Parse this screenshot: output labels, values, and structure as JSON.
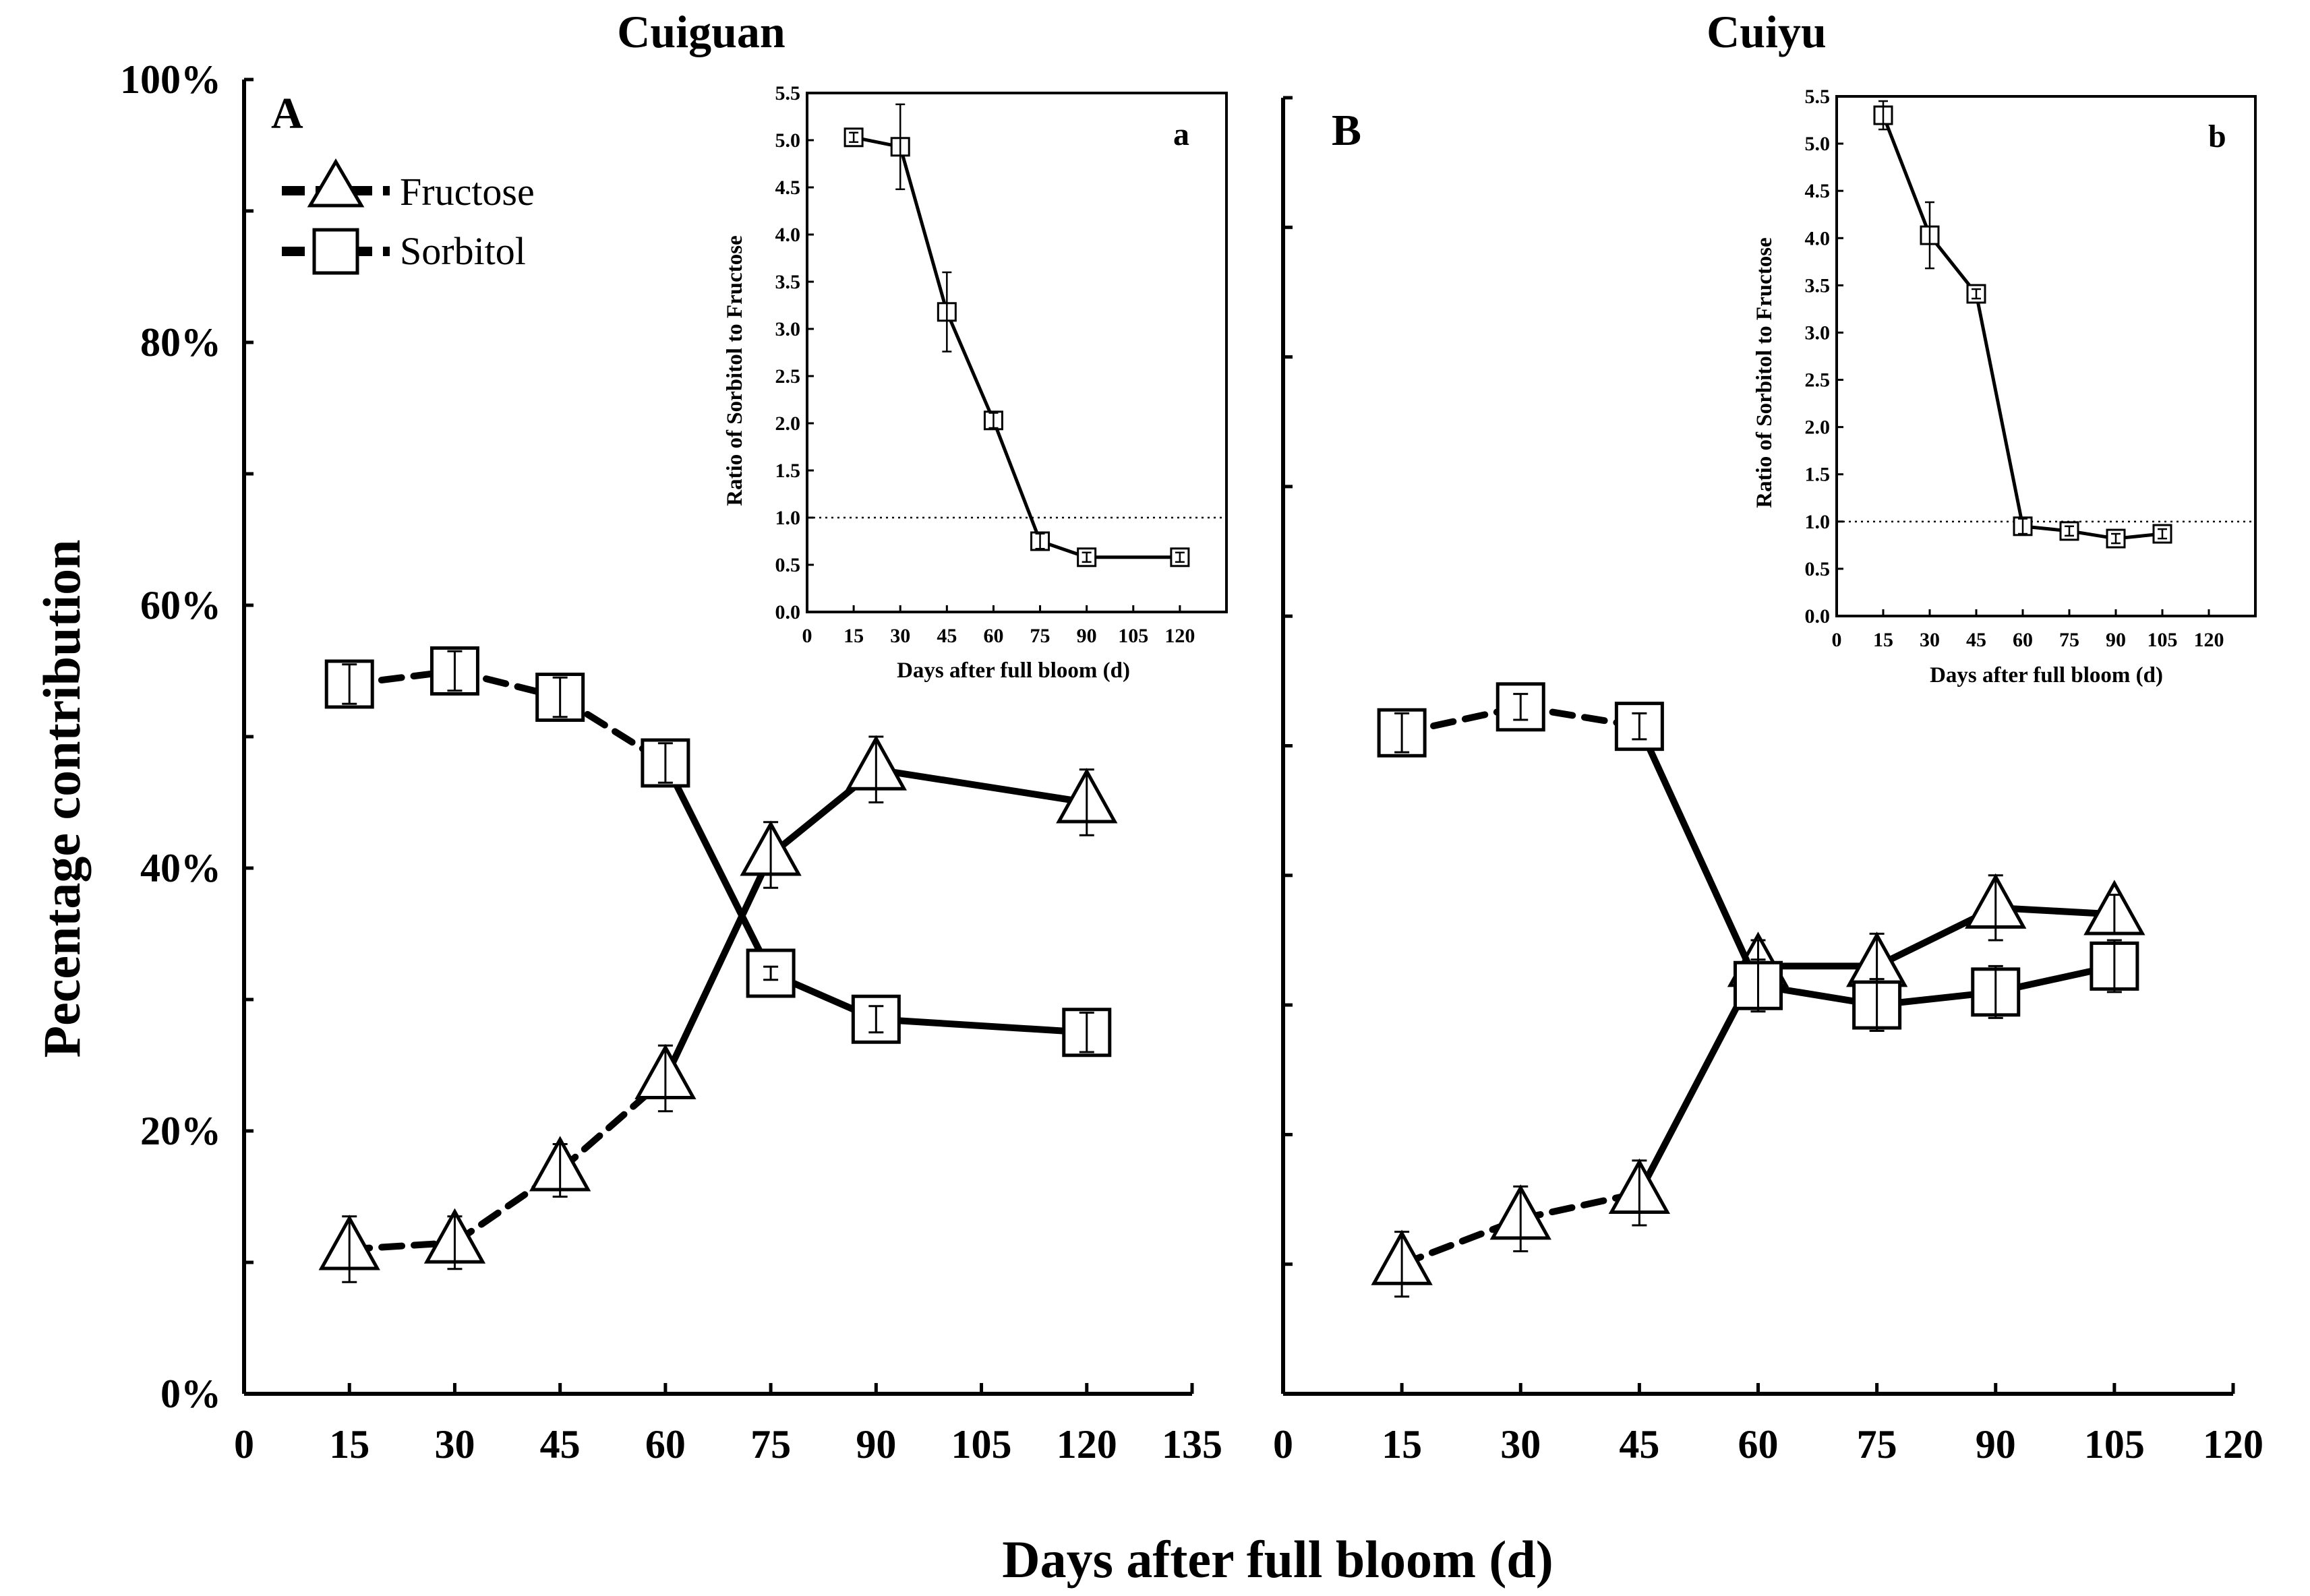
{
  "figure": {
    "x_axis_title": "Days after full bloom (d)",
    "y_axis_title": "Pecentage  contribution",
    "legend": [
      {
        "label": "Fructose",
        "marker": "triangle",
        "line": "dashed"
      },
      {
        "label": "Sorbitol",
        "marker": "square",
        "line": "dashed"
      }
    ]
  },
  "chart_data": [
    {
      "id": "A",
      "type": "line",
      "title": "Cuiguan",
      "panel_label": "A",
      "xlabel": "Days after full bloom (d)",
      "ylabel": "Pecentage  contribution",
      "xlim": [
        0,
        135
      ],
      "ylim": [
        0,
        100
      ],
      "xticks": [
        "0",
        "15",
        "30",
        "45",
        "60",
        "75",
        "90",
        "105",
        "120",
        "135"
      ],
      "yticks": [
        "0%",
        "20%",
        "40%",
        "60%",
        "80%",
        "100%"
      ],
      "x": [
        15,
        30,
        45,
        60,
        75,
        90,
        120
      ],
      "series": [
        {
          "name": "Fructose",
          "marker": "triangle",
          "values": [
            11,
            11.5,
            17,
            24,
            41,
            47.5,
            45
          ],
          "errors": [
            2.5,
            2,
            2,
            2.5,
            2.5,
            2.5,
            2.5
          ]
        },
        {
          "name": "Sorbitol",
          "marker": "square",
          "values": [
            54,
            55,
            53,
            48,
            32,
            28.5,
            27.5
          ],
          "errors": [
            1.5,
            1.5,
            1.5,
            1.5,
            0.5,
            1,
            1.5
          ]
        }
      ]
    },
    {
      "id": "B",
      "type": "line",
      "title": "Cuiyu",
      "panel_label": "B",
      "xlabel": "Days after full bloom (d)",
      "xlim": [
        0,
        120
      ],
      "ylim": [
        0,
        100
      ],
      "xticks": [
        "0",
        "15",
        "30",
        "45",
        "60",
        "75",
        "90",
        "105",
        "120"
      ],
      "x": [
        15,
        30,
        45,
        60,
        75,
        90,
        105
      ],
      "series": [
        {
          "name": "Fructose",
          "marker": "triangle",
          "values": [
            10,
            13.5,
            15.5,
            33,
            33,
            37.5,
            37
          ],
          "errors": [
            2.5,
            2.5,
            2.5,
            2,
            2.5,
            2.5,
            1.5
          ]
        },
        {
          "name": "Sorbitol",
          "marker": "square",
          "values": [
            51,
            53,
            51.5,
            31.5,
            30,
            31,
            33
          ],
          "errors": [
            1.5,
            1,
            1,
            2,
            2,
            2,
            2
          ]
        }
      ]
    },
    {
      "id": "a",
      "type": "line",
      "panel_label": "a",
      "inset_of": "A",
      "xlabel": "Days after full bloom (d)",
      "ylabel": "Ratio of Sorbitol to Fructose",
      "xlim": [
        0,
        135
      ],
      "ylim": [
        0,
        5.5
      ],
      "xticks": [
        "0",
        "15",
        "30",
        "45",
        "60",
        "75",
        "90",
        "105",
        "120"
      ],
      "yticks": [
        "0.0",
        "0.5",
        "1.0",
        "1.5",
        "2.0",
        "2.5",
        "3.0",
        "3.5",
        "4.0",
        "4.5",
        "5.0",
        "5.5"
      ],
      "reference_line": 1.0,
      "x": [
        15,
        30,
        45,
        60,
        75,
        90,
        120
      ],
      "series": [
        {
          "name": "Ratio",
          "marker": "square",
          "values": [
            5.03,
            4.93,
            3.18,
            2.03,
            0.75,
            0.58,
            0.58
          ],
          "errors": [
            0.05,
            0.45,
            0.42,
            0.08,
            0.08,
            0.05,
            0.05
          ]
        }
      ]
    },
    {
      "id": "b",
      "type": "line",
      "panel_label": "b",
      "inset_of": "B",
      "xlabel": "Days after full bloom (d)",
      "ylabel": "Ratio of Sorbitol to Fructose",
      "xlim": [
        0,
        135
      ],
      "ylim": [
        0,
        5.5
      ],
      "xticks": [
        "0",
        "15",
        "30",
        "45",
        "60",
        "75",
        "90",
        "105",
        "120"
      ],
      "yticks": [
        "0.0",
        "0.5",
        "1.0",
        "1.5",
        "2.0",
        "2.5",
        "3.0",
        "3.5",
        "4.0",
        "4.5",
        "5.0",
        "5.5"
      ],
      "reference_line": 1.0,
      "x": [
        15,
        30,
        45,
        60,
        75,
        90,
        105
      ],
      "series": [
        {
          "name": "Ratio",
          "marker": "square",
          "values": [
            5.3,
            4.03,
            3.41,
            0.95,
            0.9,
            0.82,
            0.87
          ],
          "errors": [
            0.15,
            0.35,
            0.05,
            0.08,
            0.05,
            0.05,
            0.05
          ]
        }
      ]
    }
  ]
}
